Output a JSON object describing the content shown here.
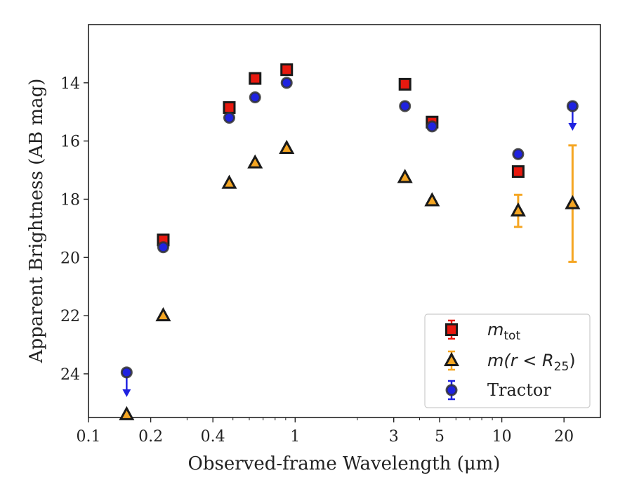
{
  "chart_data": {
    "type": "scatter",
    "xlabel": "Observed-frame Wavelength (μm)",
    "ylabel": "Apparent Brightness (AB mag)",
    "xscale": "log",
    "xlim": [
      0.1,
      30
    ],
    "ylim": [
      25.5,
      12.0
    ],
    "y_inverted": true,
    "grid": false,
    "legend_position": "lower right",
    "xticks": [
      0.1,
      0.2,
      0.4,
      1,
      3,
      5,
      10,
      20
    ],
    "xtick_labels": [
      "0.1",
      "0.2",
      "0.4",
      "1",
      "3",
      "5",
      "10",
      "20"
    ],
    "yticks": [
      14,
      16,
      18,
      20,
      22,
      24
    ],
    "ytick_labels": [
      "14",
      "16",
      "18",
      "20",
      "22",
      "24"
    ],
    "series": [
      {
        "key": "mtot",
        "legend_base": "m",
        "legend_sub": "tot",
        "marker": "square",
        "color": "#e8190f",
        "edge": "#1a1a1a",
        "points": [
          {
            "x": 0.23,
            "y": 19.4
          },
          {
            "x": 0.48,
            "y": 14.85
          },
          {
            "x": 0.64,
            "y": 13.85
          },
          {
            "x": 0.91,
            "y": 13.55
          },
          {
            "x": 3.4,
            "y": 14.05
          },
          {
            "x": 4.6,
            "y": 15.35
          },
          {
            "x": 12.0,
            "y": 17.05
          }
        ]
      },
      {
        "key": "mr25",
        "legend_base": "m(r < R",
        "legend_sub": "25",
        "legend_tail": ")",
        "marker": "triangle",
        "color": "#f5a623",
        "edge": "#1a1a1a",
        "points": [
          {
            "x": 0.153,
            "y": 25.4
          },
          {
            "x": 0.23,
            "y": 22.0
          },
          {
            "x": 0.48,
            "y": 17.45
          },
          {
            "x": 0.64,
            "y": 16.75
          },
          {
            "x": 0.91,
            "y": 16.25
          },
          {
            "x": 3.4,
            "y": 17.25
          },
          {
            "x": 4.6,
            "y": 18.05
          },
          {
            "x": 12.0,
            "y": 18.4,
            "err": 0.55
          },
          {
            "x": 22.0,
            "y": 18.15,
            "err": 2.0
          }
        ]
      },
      {
        "key": "tractor",
        "legend_label": "Tractor",
        "marker": "circle",
        "color": "#1f22e0",
        "edge": "#333333",
        "points": [
          {
            "x": 0.153,
            "y": 23.95,
            "upper_limit": true
          },
          {
            "x": 0.23,
            "y": 19.65
          },
          {
            "x": 0.48,
            "y": 15.2
          },
          {
            "x": 0.64,
            "y": 14.5
          },
          {
            "x": 0.91,
            "y": 14.0
          },
          {
            "x": 3.4,
            "y": 14.8
          },
          {
            "x": 4.6,
            "y": 15.5
          },
          {
            "x": 12.0,
            "y": 16.45
          },
          {
            "x": 22.0,
            "y": 14.8,
            "upper_limit": true
          }
        ]
      }
    ]
  }
}
